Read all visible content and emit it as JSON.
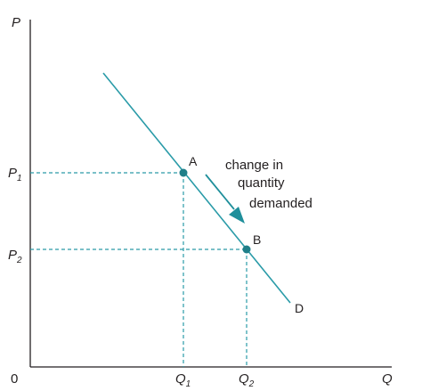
{
  "axes": {
    "y_label": "P",
    "x_label": "Q",
    "origin": "0"
  },
  "ticks": {
    "p1": {
      "base": "P",
      "sub": "1"
    },
    "p2": {
      "base": "P",
      "sub": "2"
    },
    "q1": {
      "base": "Q",
      "sub": "1"
    },
    "q2": {
      "base": "Q",
      "sub": "2"
    }
  },
  "points": {
    "a": "A",
    "b": "B"
  },
  "curve_label": "D",
  "annotation": [
    "change in",
    "quantity",
    "demanded"
  ],
  "colors": {
    "curve": "#2a9ba8",
    "guides": "#2a9ba8",
    "points": "#1f7f89",
    "arrow": "#1f8f9b",
    "axes": "#231f20"
  }
}
